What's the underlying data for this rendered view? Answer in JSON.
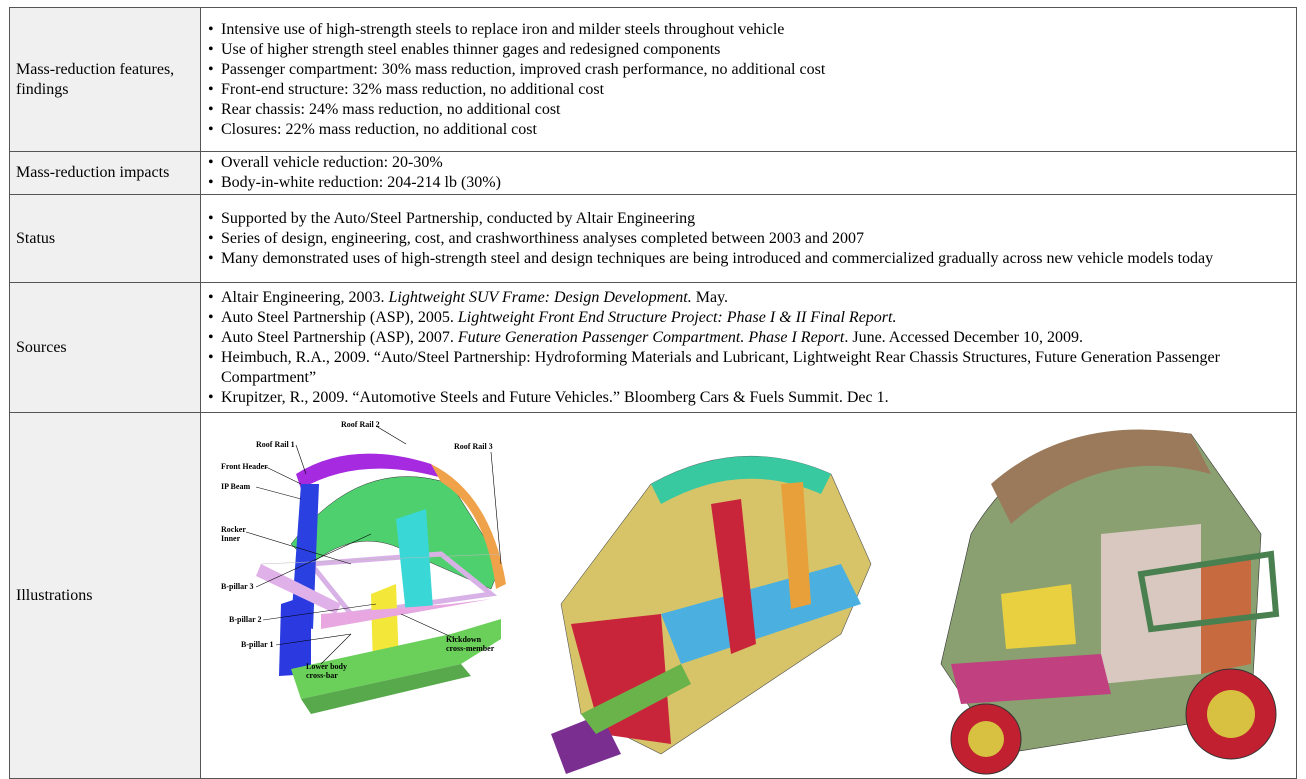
{
  "table": {
    "rows": [
      {
        "label": "Mass-reduction features, findings",
        "bullets": [
          "Intensive use of high-strength steels to replace iron and milder steels throughout vehicle",
          "Use of higher strength steel enables thinner gages and redesigned components",
          "Passenger compartment: 30% mass reduction, improved crash performance, no additional cost",
          "Front-end structure: 32% mass reduction, no additional cost",
          "Rear chassis: 24% mass reduction, no additional cost",
          "Closures: 22% mass reduction, no additional cost"
        ]
      },
      {
        "label": "Mass-reduction impacts",
        "bullets": [
          "Overall vehicle reduction: 20-30%",
          "Body-in-white reduction: 204-214 lb (30%)"
        ]
      },
      {
        "label": "Status",
        "bullets": [
          "Supported by the Auto/Steel Partnership, conducted by Altair Engineering",
          "Series of design, engineering, cost, and crashworthiness analyses completed between 2003 and 2007",
          "Many demonstrated uses of high-strength steel and design techniques are being introduced and commercialized gradually across new vehicle models today"
        ]
      },
      {
        "label": "Sources",
        "bullets": [
          {
            "author": "Altair Engineering, 2003.",
            "title": "Lightweight SUV Frame: Design Development.",
            "rest": "May."
          },
          {
            "author": "Auto Steel Partnership (ASP), 2005.",
            "title": "Lightweight Front End Structure Project: Phase I & II Final Report."
          },
          {
            "author": "Auto Steel Partnership (ASP), 2007.",
            "title": "Future Generation Passenger Compartment. Phase I Report",
            "rest": ". June. Accessed December 10, 2009."
          },
          "Heimbuch, R.A., 2009. “Auto/Steel Partnership: Hydroforming Materials and Lubricant, Lightweight Rear Chassis Structures, Future Generation Passenger Compartment”",
          "Krupitzer, R., 2009. “Automotive Steels and Future Vehicles.” Bloomberg Cars & Fuels Summit. Dec 1."
        ]
      },
      {
        "label": "Illustrations",
        "labels": [
          "Roof Rail 1",
          "Roof Rail 2",
          "Roof Rail 3",
          "Front Header",
          "IP Beam",
          [
            "Rocker",
            "Inner"
          ],
          "B-pillar 3",
          "B-pillar 2",
          "B-pillar 1",
          [
            "Lower body",
            "cross-bar"
          ],
          [
            "Kickdown",
            "cross-member"
          ]
        ]
      }
    ]
  }
}
